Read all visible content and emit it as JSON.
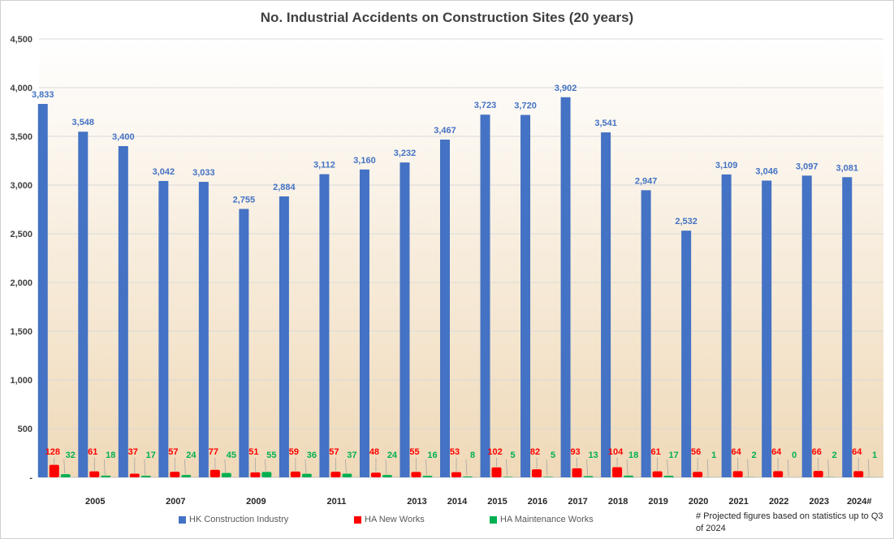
{
  "chart_data": {
    "type": "bar",
    "title": "No. Industrial Accidents on Construction Sites (20 years)",
    "categories": [
      "",
      "2005",
      "",
      "2007",
      "",
      "2009",
      "",
      "2011",
      "",
      "2013",
      "2014",
      "2015",
      "2016",
      "2017",
      "2018",
      "2019",
      "2020",
      "2021",
      "2022",
      "2023",
      "2024#"
    ],
    "series": [
      {
        "name": "HK Construction Industry",
        "color": "#4472C4",
        "label_color": "#4472C4",
        "values": [
          3833,
          3548,
          3400,
          3042,
          3033,
          2755,
          2884,
          3112,
          3160,
          3232,
          3467,
          3723,
          3720,
          3902,
          3541,
          2947,
          2532,
          3109,
          3046,
          3097,
          3081
        ],
        "labels": [
          "3,833",
          "3,548",
          "3,400",
          "3,042",
          "3,033",
          "2,755",
          "2,884",
          "3,112",
          "3,160",
          "3,232",
          "3,467",
          "3,723",
          "3,720",
          "3,902",
          "3,541",
          "2,947",
          "2,532",
          "3,109",
          "3,046",
          "3,097",
          "3,081"
        ]
      },
      {
        "name": "HA New Works",
        "color": "#FF0000",
        "label_color": "#FF0000",
        "values": [
          128,
          61,
          37,
          57,
          77,
          51,
          59,
          57,
          48,
          55,
          53,
          102,
          82,
          93,
          104,
          61,
          56,
          64,
          64,
          66,
          64
        ],
        "labels": [
          "128",
          "61",
          "37",
          "57",
          "77",
          "51",
          "59",
          "57",
          "48",
          "55",
          "53",
          "102",
          "82",
          "93",
          "104",
          "61",
          "56",
          "64",
          "64",
          "66",
          "64"
        ]
      },
      {
        "name": "HA Maintenance Works",
        "color": "#00B050",
        "label_color": "#00B050",
        "values": [
          32,
          18,
          17,
          24,
          45,
          55,
          36,
          37,
          24,
          16,
          8,
          5,
          5,
          13,
          18,
          17,
          1,
          2,
          0,
          2,
          1
        ],
        "labels": [
          "32",
          "18",
          "17",
          "24",
          "45",
          "55",
          "36",
          "37",
          "24",
          "16",
          "8",
          "5",
          "5",
          "13",
          "18",
          "17",
          "1",
          "2",
          "0",
          "2",
          "1"
        ]
      }
    ],
    "y_ticks": [
      "-",
      "500",
      "1,000",
      "1,500",
      "2,000",
      "2,500",
      "3,000",
      "3,500",
      "4,000",
      "4,500"
    ],
    "ylim": [
      0,
      4500
    ],
    "grid": true,
    "legend_position": "bottom",
    "background_gradient": [
      "#FFFFFF",
      "#EFD9B8"
    ],
    "footnote": "# Projected figures based on statistics up to Q3 of 2024"
  }
}
